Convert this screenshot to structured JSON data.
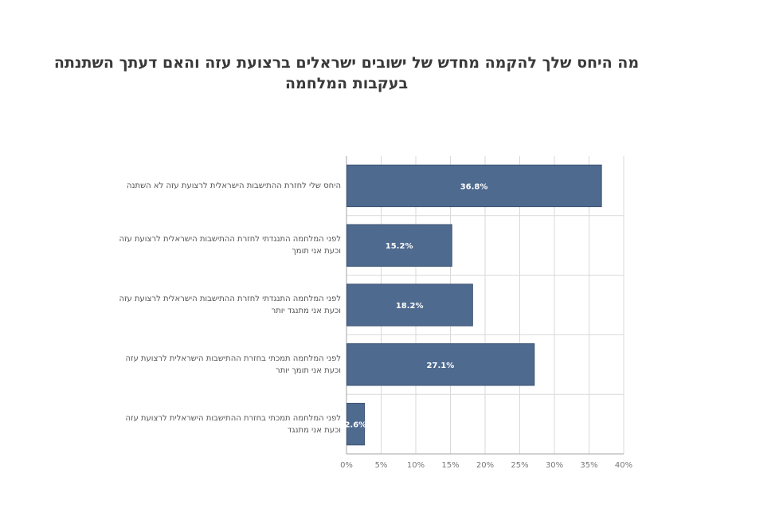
{
  "chart_data": {
    "type": "bar",
    "orientation": "horizontal",
    "title": "מה היחס שלך להקמה מחדש של ישובים ישראלים ברצועת עזה והאם דעתך השתנתה בעקבות המלחמה",
    "categories": [
      "היחס שלי לחזרת ההתישבות הישראלית לרצועת עזה לא השתנה",
      "לפני המלחמה התנגדתי לחזרת ההתישבות הישראלית לרצועת עזה וכעת אני תומך",
      "לפני המלחמה התנגדתי לחזרת ההתישבות הישראלית לרצועת עזה וכעת אני מתנגד יותר",
      "לפני המלחמה תמכתי בחזרת ההתישבות הישראלית לרצועת עזה וכעת אני תומך יותר",
      "לפני המלחמה תמכתי בחזרת ההתישבות הישראלית לרצועת עזה וכעת אני מתנגד"
    ],
    "values": [
      36.8,
      15.2,
      18.2,
      27.1,
      2.6
    ],
    "data_labels": [
      "36.8%",
      "15.2%",
      "18.2%",
      "27.1%",
      "2.6%"
    ],
    "x_ticks": [
      "0%",
      "5%",
      "10%",
      "15%",
      "20%",
      "25%",
      "30%",
      "35%",
      "40%"
    ],
    "xlim": [
      0,
      40
    ],
    "grid": true,
    "bar_color": "#4f6a8f",
    "gridline_color": "#d9d9d9",
    "axis_color": "#a6a6a6"
  }
}
